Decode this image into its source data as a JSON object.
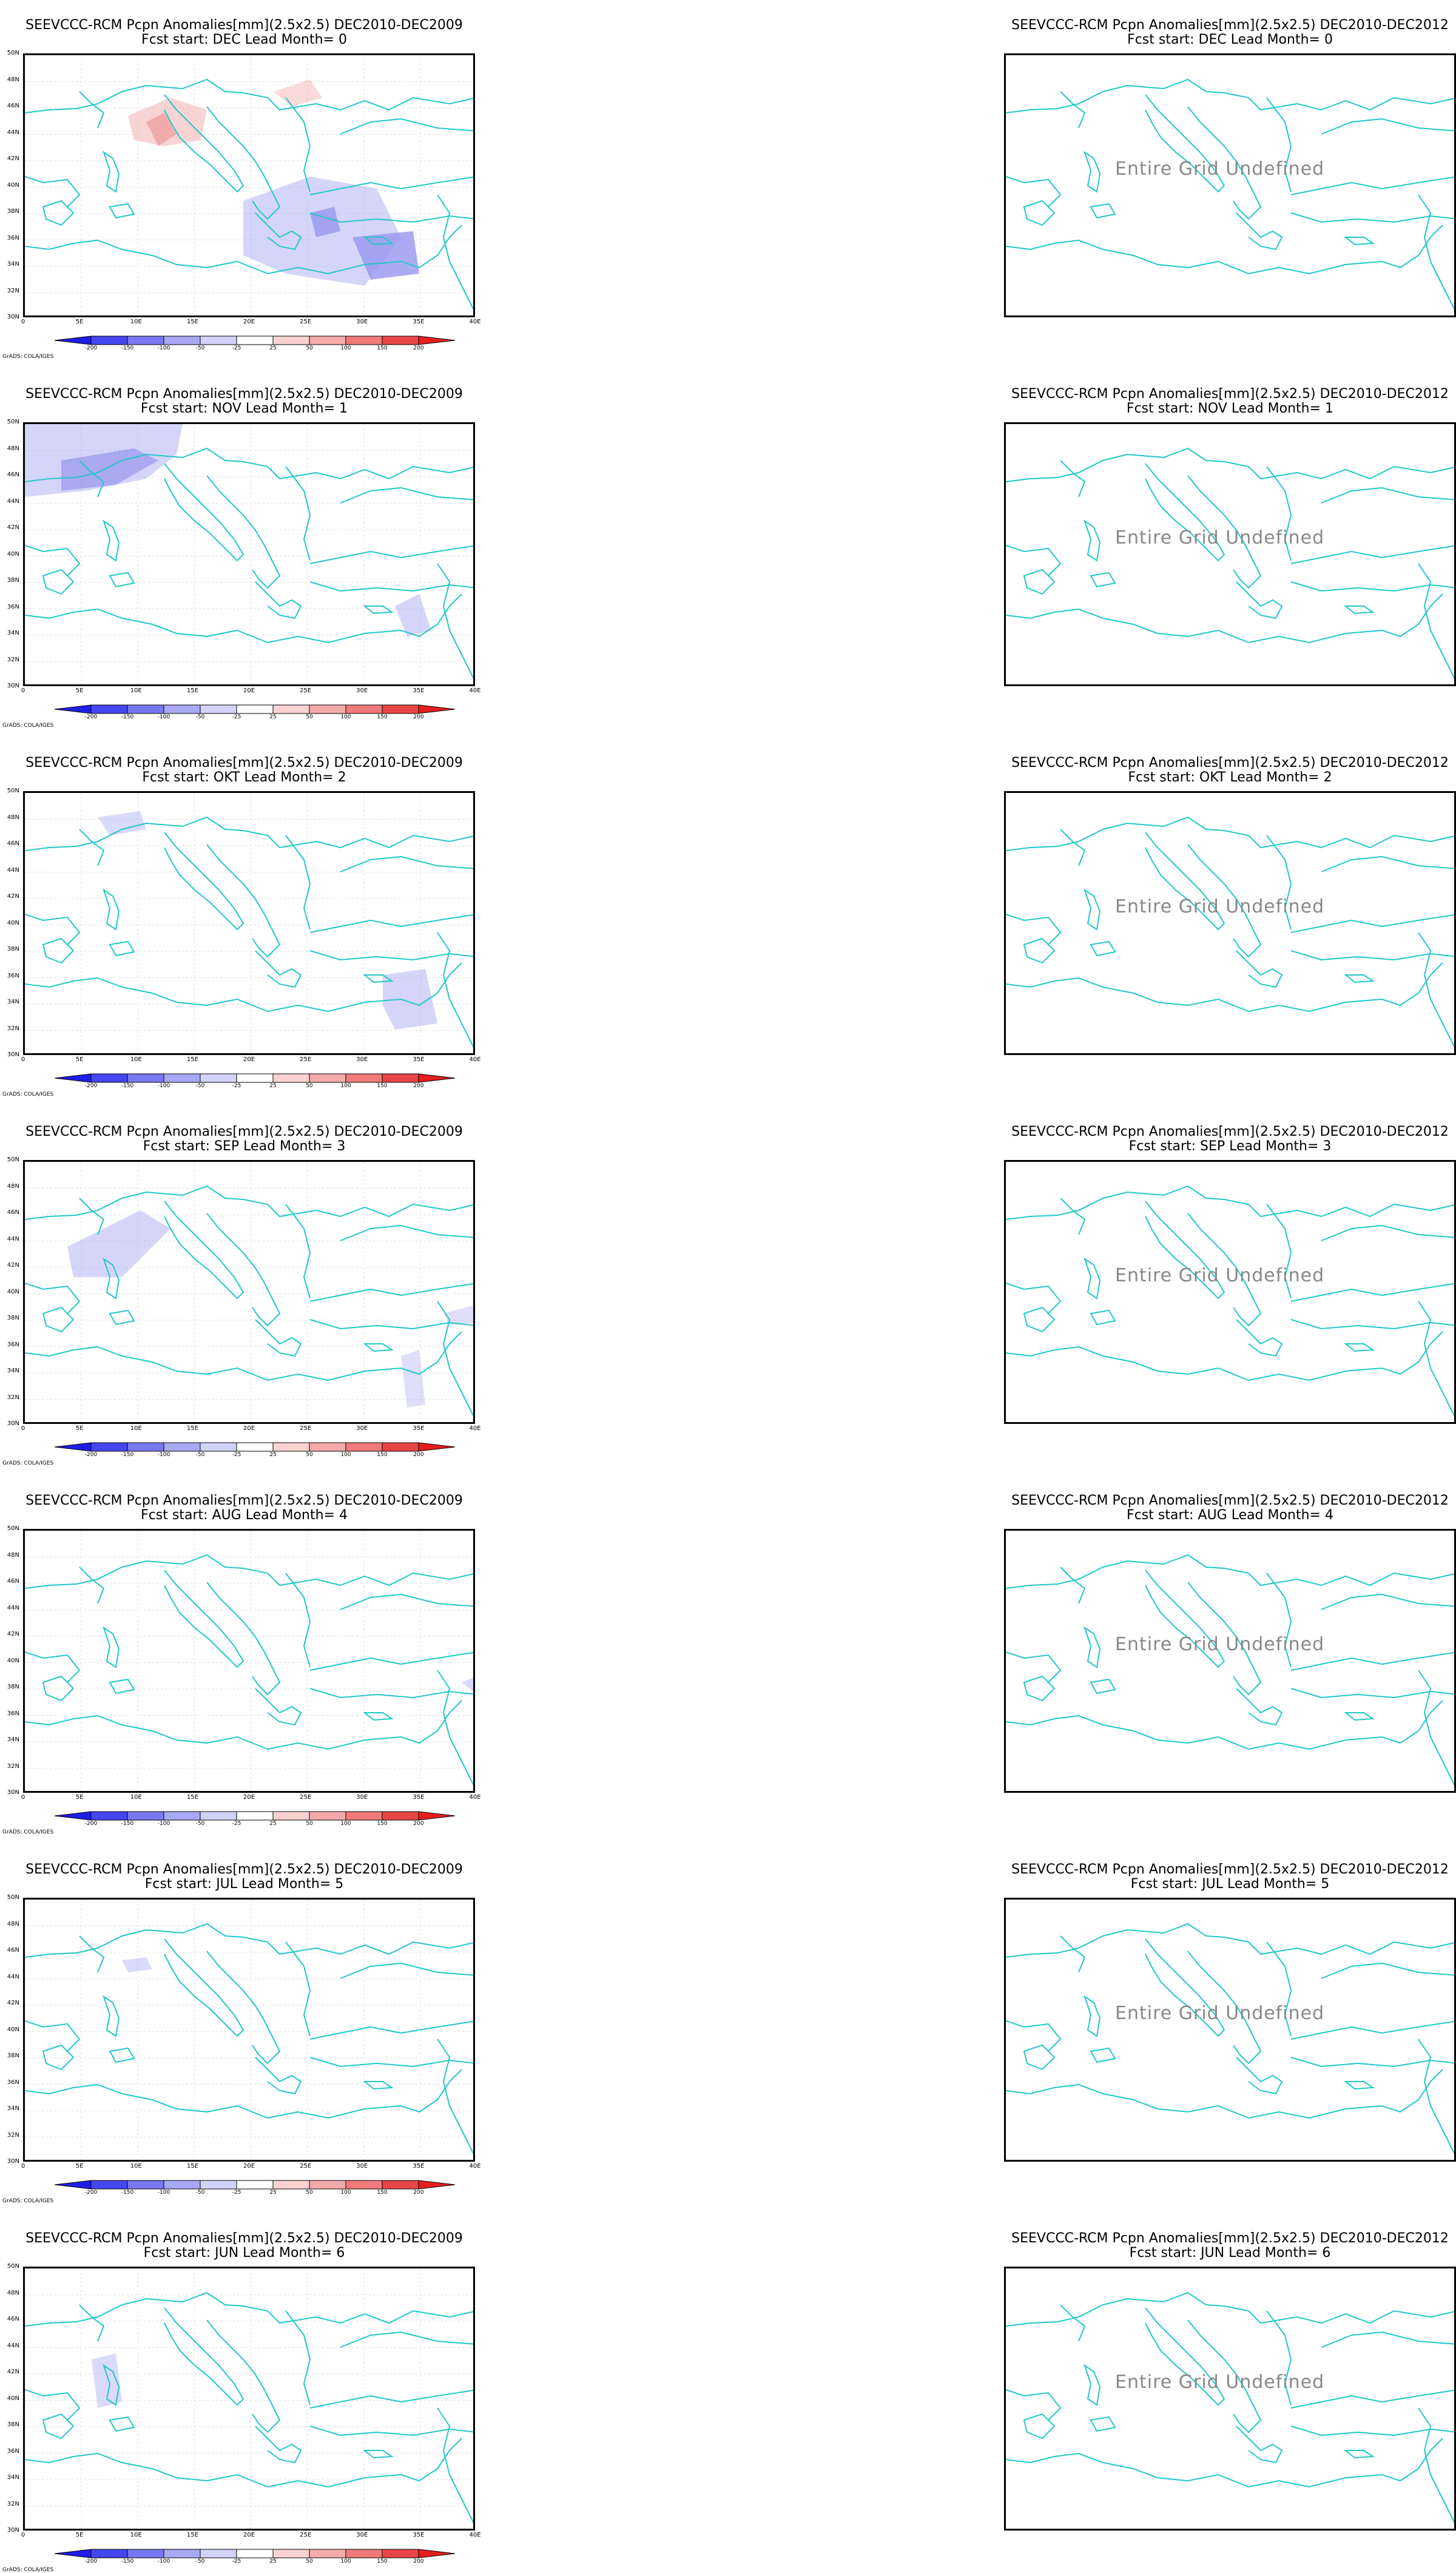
{
  "panels_left": [
    {
      "line1": "SEEVCCC-RCM Pcpn Anomalies[mm](2.5x2.5) DEC2010-DEC2009",
      "line2": "Fcst start: DEC  Lead Month= 0"
    },
    {
      "line1": "SEEVCCC-RCM Pcpn Anomalies[mm](2.5x2.5) DEC2010-DEC2009",
      "line2": "Fcst start: NOV  Lead Month= 1"
    },
    {
      "line1": "SEEVCCC-RCM Pcpn Anomalies[mm](2.5x2.5) DEC2010-DEC2009",
      "line2": "Fcst start: OKT  Lead Month= 2"
    },
    {
      "line1": "SEEVCCC-RCM Pcpn Anomalies[mm](2.5x2.5) DEC2010-DEC2009",
      "line2": "Fcst start: SEP  Lead Month= 3"
    },
    {
      "line1": "SEEVCCC-RCM Pcpn Anomalies[mm](2.5x2.5) DEC2010-DEC2009",
      "line2": "Fcst start: AUG  Lead Month= 4"
    },
    {
      "line1": "SEEVCCC-RCM Pcpn Anomalies[mm](2.5x2.5) DEC2010-DEC2009",
      "line2": "Fcst start: JUL  Lead Month= 5"
    },
    {
      "line1": "SEEVCCC-RCM Pcpn Anomalies[mm](2.5x2.5) DEC2010-DEC2009",
      "line2": "Fcst start: JUN  Lead Month= 6"
    }
  ],
  "panels_right": [
    {
      "line1": "SEEVCCC-RCM Pcpn Anomalies[mm](2.5x2.5) DEC2010-DEC2012",
      "line2": "Fcst start: DEC  Lead Month= 0"
    },
    {
      "line1": "SEEVCCC-RCM Pcpn Anomalies[mm](2.5x2.5) DEC2010-DEC2012",
      "line2": "Fcst start: NOV  Lead Month= 1"
    },
    {
      "line1": "SEEVCCC-RCM Pcpn Anomalies[mm](2.5x2.5) DEC2010-DEC2012",
      "line2": "Fcst start: OKT  Lead Month= 2"
    },
    {
      "line1": "SEEVCCC-RCM Pcpn Anomalies[mm](2.5x2.5) DEC2010-DEC2012",
      "line2": "Fcst start: SEP  Lead Month= 3"
    },
    {
      "line1": "SEEVCCC-RCM Pcpn Anomalies[mm](2.5x2.5) DEC2010-DEC2012",
      "line2": "Fcst start: AUG  Lead Month= 4"
    },
    {
      "line1": "SEEVCCC-RCM Pcpn Anomalies[mm](2.5x2.5) DEC2010-DEC2012",
      "line2": "Fcst start: JUL  Lead Month= 5"
    },
    {
      "line1": "SEEVCCC-RCM Pcpn Anomalies[mm](2.5x2.5) DEC2010-DEC2012",
      "line2": "Fcst start: JUN  Lead Month= 6"
    }
  ],
  "undefined_text": "Entire Grid Undefined",
  "y_ticks": [
    "50N",
    "48N",
    "46N",
    "44N",
    "42N",
    "40N",
    "38N",
    "36N",
    "34N",
    "32N",
    "30N"
  ],
  "x_ticks": [
    "0",
    "5E",
    "10E",
    "15E",
    "20E",
    "25E",
    "30E",
    "35E",
    "40E"
  ],
  "colorbar": {
    "labels": [
      "-200",
      "-150",
      "-100",
      "-50",
      "-25",
      "25",
      "50",
      "100",
      "150",
      "200"
    ],
    "colors": [
      "#1e1ee6",
      "#4646f0",
      "#7878f0",
      "#a8a8f5",
      "#d2d2fa",
      "#ffffff",
      "#fad2d2",
      "#f5aaaa",
      "#f07a7a",
      "#e84646",
      "#e61e1e"
    ]
  },
  "credit": "GrADS: COLA/IGES",
  "colors": {
    "coast": "#20c8c8",
    "positive": "#f0a0a0",
    "negative": "#9696f0"
  }
}
